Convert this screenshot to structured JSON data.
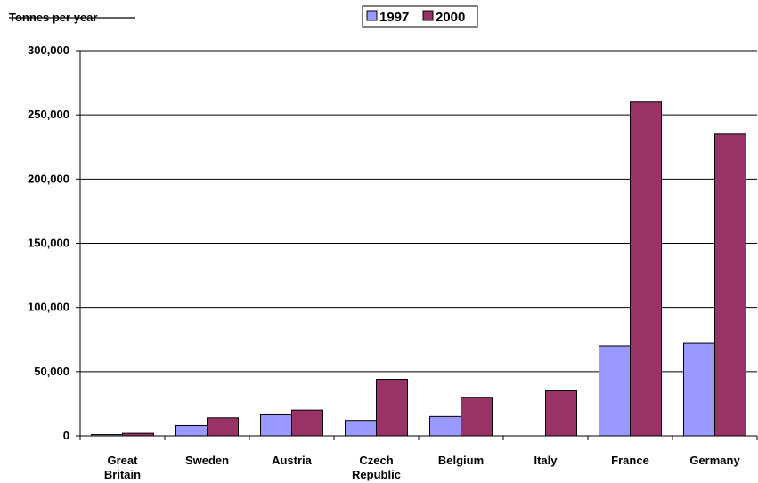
{
  "chart_data": {
    "type": "bar",
    "ylabel": "Tonnes per year",
    "categories": [
      [
        "Great",
        "Britain"
      ],
      [
        "Sweden"
      ],
      [
        "Austria"
      ],
      [
        "Czech",
        "Republic"
      ],
      [
        "Belgium"
      ],
      [
        "Italy"
      ],
      [
        "France"
      ],
      [
        "Germany"
      ]
    ],
    "series": [
      {
        "name": "1997",
        "color": "#9999ff",
        "values": [
          1000,
          8000,
          17000,
          12000,
          15000,
          0,
          70000,
          72000
        ]
      },
      {
        "name": "2000",
        "color": "#993366",
        "values": [
          2000,
          14000,
          20000,
          44000,
          30000,
          35000,
          260000,
          235000
        ]
      }
    ],
    "ylim": [
      0,
      300000
    ],
    "yticks": [
      "0",
      "50,000",
      "100,000",
      "150,000",
      "200,000",
      "250,000",
      "300,000"
    ],
    "ytick_values": [
      0,
      50000,
      100000,
      150000,
      200000,
      250000,
      300000
    ],
    "grid": true,
    "legend": "top-center"
  }
}
